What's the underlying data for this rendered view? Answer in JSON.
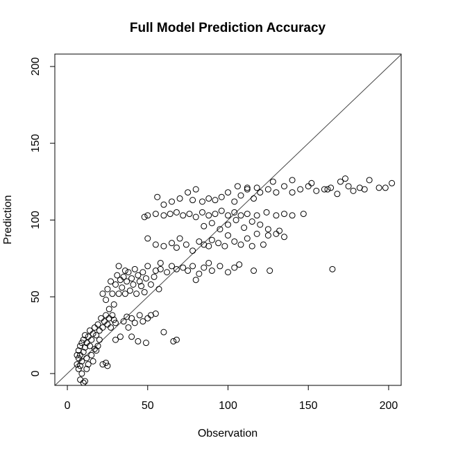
{
  "chart_data": {
    "type": "scatter",
    "title": "Full Model Prediction Accuracy",
    "x_label": "Observation",
    "y_label": "Prediction",
    "xlim": [
      -7.8,
      207.8
    ],
    "ylim": [
      -7.7,
      208.1
    ],
    "xticks": [
      0,
      50,
      100,
      150,
      200
    ],
    "yticks": [
      0,
      50,
      100,
      150,
      200
    ],
    "color": "#000000",
    "reference_line": {
      "slope": 1,
      "intercept": 0
    },
    "x": [
      6,
      7,
      7,
      8,
      8,
      8,
      9,
      9,
      10,
      10,
      11,
      11,
      12,
      12,
      13,
      14,
      14,
      15,
      16,
      17,
      18,
      19,
      20,
      21,
      22,
      23,
      24,
      25,
      26,
      27,
      28,
      29,
      30,
      8,
      10,
      11,
      7,
      9,
      13,
      15,
      17,
      19,
      22,
      25,
      24,
      20,
      18,
      16,
      12,
      6,
      22,
      25,
      27,
      28,
      30,
      31,
      32,
      33,
      34,
      35,
      36,
      37,
      38,
      39,
      40,
      41,
      42,
      43,
      44,
      45,
      46,
      47,
      48,
      49,
      50,
      52,
      54,
      55,
      57,
      32,
      36,
      29,
      26,
      24,
      58,
      30,
      33,
      35,
      38,
      40,
      42,
      44,
      45,
      47,
      49,
      50,
      52,
      55,
      40,
      37,
      60,
      68,
      66,
      58,
      62,
      65,
      68,
      72,
      75,
      78,
      80,
      82,
      85,
      88,
      90,
      95,
      100,
      104,
      107,
      116,
      126,
      165,
      60,
      65,
      68,
      70,
      74,
      78,
      82,
      85,
      88,
      90,
      94,
      98,
      100,
      104,
      108,
      112,
      115,
      118,
      122,
      125,
      130,
      135,
      55,
      50,
      85,
      90,
      95,
      100,
      105,
      110,
      115,
      120,
      125,
      132,
      48,
      50,
      55,
      60,
      64,
      68,
      72,
      76,
      80,
      84,
      88,
      92,
      96,
      100,
      104,
      108,
      112,
      118,
      124,
      130,
      135,
      140,
      147,
      56,
      60,
      65,
      70,
      75,
      78,
      80,
      84,
      88,
      92,
      96,
      100,
      104,
      108,
      112,
      116,
      120,
      125,
      130,
      135,
      140,
      145,
      150,
      155,
      160,
      164,
      168,
      170,
      173,
      178,
      182,
      188,
      194,
      198,
      202,
      106,
      112,
      118,
      128,
      140,
      152,
      162,
      175,
      185
    ],
    "y": [
      6,
      10,
      15,
      5,
      12,
      18,
      8,
      20,
      14,
      22,
      17,
      25,
      10,
      20,
      24,
      18,
      28,
      22,
      26,
      30,
      25,
      32,
      28,
      36,
      30,
      34,
      38,
      32,
      36,
      30,
      38,
      35,
      33,
      -4,
      -6,
      -5,
      3,
      0,
      6,
      12,
      16,
      18,
      6,
      5,
      7,
      22,
      15,
      8,
      3,
      12,
      52,
      55,
      60,
      52,
      58,
      64,
      52,
      61,
      56,
      63,
      52,
      60,
      66,
      54,
      62,
      58,
      68,
      52,
      64,
      60,
      57,
      66,
      53,
      62,
      70,
      58,
      63,
      67,
      55,
      70,
      67,
      45,
      42,
      48,
      72,
      22,
      24,
      34,
      30,
      36,
      33,
      21,
      38,
      34,
      20,
      36,
      38,
      39,
      24,
      37,
      27,
      22,
      21,
      68,
      66,
      70,
      68,
      69,
      67,
      70,
      61,
      65,
      69,
      72,
      67,
      70,
      66,
      69,
      71,
      67,
      67,
      68,
      83,
      85,
      82,
      88,
      84,
      80,
      86,
      84,
      83,
      87,
      85,
      83,
      90,
      86,
      84,
      88,
      83,
      91,
      84,
      90,
      91,
      89,
      84,
      88,
      96,
      98,
      94,
      97,
      100,
      95,
      99,
      97,
      94,
      93,
      102,
      103,
      104,
      103,
      104,
      105,
      103,
      104,
      102,
      105,
      103,
      104,
      106,
      103,
      105,
      103,
      104,
      103,
      105,
      103,
      104,
      103,
      104,
      115,
      110,
      112,
      114,
      118,
      113,
      120,
      112,
      114,
      113,
      115,
      118,
      112,
      116,
      120,
      114,
      118,
      120,
      118,
      122,
      118,
      120,
      122,
      119,
      120,
      121,
      117,
      125,
      127,
      119,
      121,
      126,
      121,
      121,
      124,
      122,
      121,
      121,
      125,
      126,
      124,
      120,
      122,
      120
    ]
  }
}
